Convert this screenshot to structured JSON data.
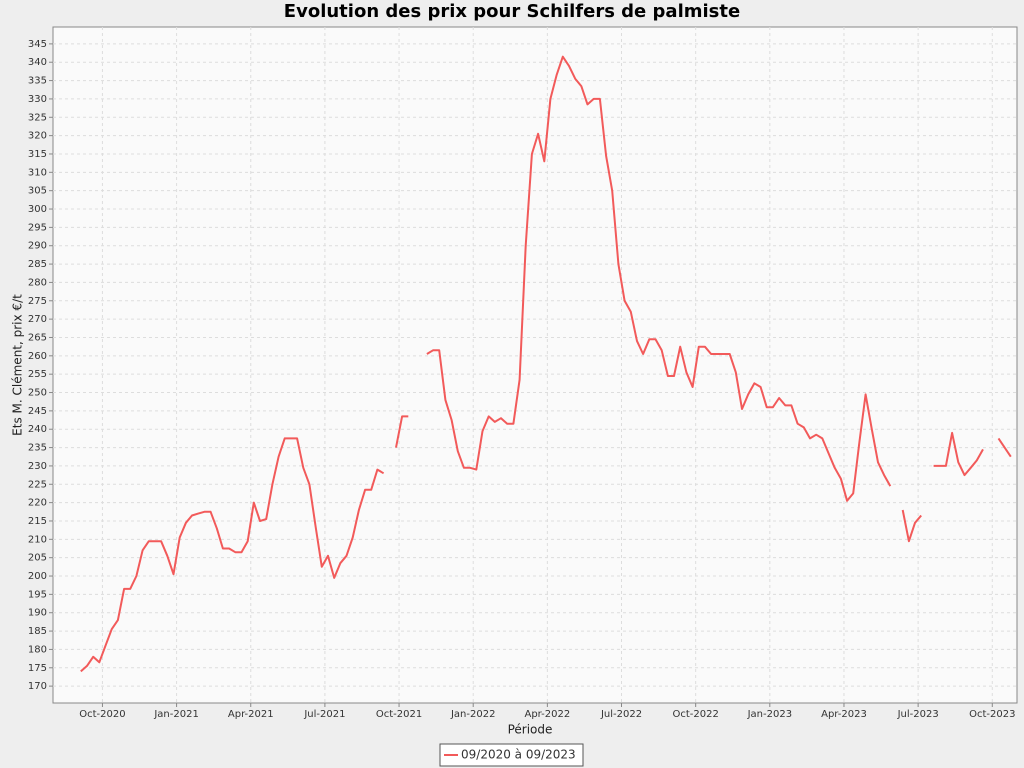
{
  "chart_data": {
    "type": "line",
    "title": "Evolution des prix pour Schilfers de palmiste",
    "x_label": "Période",
    "y_label": "Ets M. Clément, prix €/t",
    "grid": true,
    "legend": "bottom",
    "x": [
      "2020-09",
      "2020-09",
      "2020-09",
      "2020-09",
      "2020-10",
      "2020-10",
      "2020-10",
      "2020-10",
      "2020-11",
      "2020-11",
      "2020-11",
      "2020-11",
      "2020-12",
      "2020-12",
      "2020-12",
      "2020-12",
      "2021-01",
      "2021-01",
      "2021-01",
      "2021-01",
      "2021-02",
      "2021-02",
      "2021-02",
      "2021-02",
      "2021-03",
      "2021-03",
      "2021-03",
      "2021-03",
      "2021-04",
      "2021-04",
      "2021-04",
      "2021-04",
      "2021-05",
      "2021-05",
      "2021-05",
      "2021-05",
      "2021-06",
      "2021-06",
      "2021-06",
      "2021-06",
      "2021-07",
      "2021-07",
      "2021-07",
      "2021-07",
      "2021-08",
      "2021-08",
      "2021-08",
      "2021-08",
      "2021-09",
      "2021-09",
      "2021-09",
      "2021-09",
      "2021-10",
      "2021-10",
      "2021-10",
      "2021-10",
      "2021-11",
      "2021-11",
      "2021-11",
      "2021-11",
      "2021-12",
      "2021-12",
      "2021-12",
      "2021-12",
      "2022-01",
      "2022-01",
      "2022-01",
      "2022-01",
      "2022-02",
      "2022-02",
      "2022-02",
      "2022-02",
      "2022-03",
      "2022-03",
      "2022-03",
      "2022-03",
      "2022-04",
      "2022-04",
      "2022-04",
      "2022-04",
      "2022-05",
      "2022-05",
      "2022-05",
      "2022-05",
      "2022-06",
      "2022-06",
      "2022-06",
      "2022-06",
      "2022-07",
      "2022-07",
      "2022-07",
      "2022-07",
      "2022-08",
      "2022-08",
      "2022-08",
      "2022-08",
      "2022-09",
      "2022-09",
      "2022-09",
      "2022-09",
      "2022-10",
      "2022-10",
      "2022-10",
      "2022-10",
      "2022-11",
      "2022-11",
      "2022-11",
      "2022-11",
      "2022-12",
      "2022-12",
      "2022-12",
      "2022-12",
      "2023-01",
      "2023-01",
      "2023-01",
      "2023-01",
      "2023-02",
      "2023-02",
      "2023-02",
      "2023-02",
      "2023-03",
      "2023-03",
      "2023-03",
      "2023-03",
      "2023-04",
      "2023-04",
      "2023-04",
      "2023-04",
      "2023-05",
      "2023-05",
      "2023-05",
      "2023-05",
      "2023-06",
      "2023-06",
      "2023-06",
      "2023-06",
      "2023-07",
      "2023-07",
      "2023-07",
      "2023-07",
      "2023-08",
      "2023-08",
      "2023-08",
      "2023-08",
      "2023-09",
      "2023-09",
      "2023-09",
      "2023-09",
      "2023-10",
      "2023-10"
    ],
    "series": [
      {
        "name": "09/2020 à 09/2023",
        "color": "#f25a5a",
        "values": [
          174,
          175.5,
          178,
          176.5,
          181,
          185.5,
          188,
          196.5,
          196.5,
          200,
          207,
          209.5,
          209.5,
          209.5,
          205.5,
          200.5,
          210.5,
          214.5,
          216.5,
          217,
          217.5,
          217.5,
          213,
          207.5,
          207.5,
          206.5,
          206.5,
          209.5,
          220,
          215,
          215.5,
          225,
          232.5,
          237.5,
          237.5,
          237.5,
          229.5,
          225,
          213.5,
          202.5,
          205.5,
          199.5,
          203.5,
          205.5,
          210.5,
          218,
          223.5,
          223.5,
          229,
          228,
          null,
          235,
          243.5,
          243.5,
          null,
          null,
          260.5,
          261.5,
          261.5,
          248,
          242.5,
          234,
          229.5,
          229.5,
          229,
          239.5,
          243.5,
          242,
          243,
          241.5,
          241.5,
          253.5,
          290,
          315,
          320.5,
          313,
          330,
          336.5,
          341.5,
          339,
          335.5,
          333.5,
          328.5,
          330,
          330,
          314.5,
          305,
          285,
          275,
          272,
          264,
          260.5,
          264.5,
          264.5,
          261.5,
          254.5,
          254.5,
          262.5,
          255.5,
          251.5,
          262.5,
          262.5,
          260.5,
          260.5,
          260.5,
          260.5,
          255.5,
          245.5,
          249.5,
          252.5,
          251.5,
          246,
          246,
          248.5,
          246.5,
          246.5,
          241.5,
          240.5,
          237.5,
          238.5,
          237.5,
          233.5,
          229.5,
          226.5,
          220.5,
          222.5,
          236.5,
          249.5,
          240,
          231,
          227.5,
          224.5,
          null,
          218,
          209.5,
          214.5,
          216.5,
          null,
          230,
          230,
          230,
          239,
          231,
          227.5,
          229.5,
          231.5,
          234.5,
          null,
          237.5,
          232.5
        ]
      }
    ],
    "xlim": [
      "2020-08",
      "2023-11"
    ],
    "xticks": [
      {
        "value": "2020-10",
        "label": "Oct-2020"
      },
      {
        "value": "2021-01",
        "label": "Jan-2021"
      },
      {
        "value": "2021-04",
        "label": "Apr-2021"
      },
      {
        "value": "2021-07",
        "label": "Jul-2021"
      },
      {
        "value": "2021-10",
        "label": "Oct-2021"
      },
      {
        "value": "2022-01",
        "label": "Jan-2022"
      },
      {
        "value": "2022-04",
        "label": "Apr-2022"
      },
      {
        "value": "2022-07",
        "label": "Jul-2022"
      },
      {
        "value": "2022-10",
        "label": "Oct-2022"
      },
      {
        "value": "2023-01",
        "label": "Jan-2023"
      },
      {
        "value": "2023-04",
        "label": "Apr-2023"
      },
      {
        "value": "2023-07",
        "label": "Jul-2023"
      },
      {
        "value": "2023-10",
        "label": "Oct-2023"
      }
    ],
    "ylim": [
      165.4,
      349.6
    ],
    "yticks": [
      170,
      175,
      180,
      185,
      190,
      195,
      200,
      205,
      210,
      215,
      220,
      225,
      230,
      235,
      240,
      245,
      250,
      255,
      260,
      265,
      270,
      275,
      280,
      285,
      290,
      295,
      300,
      305,
      310,
      315,
      320,
      325,
      330,
      335,
      340,
      345
    ]
  }
}
